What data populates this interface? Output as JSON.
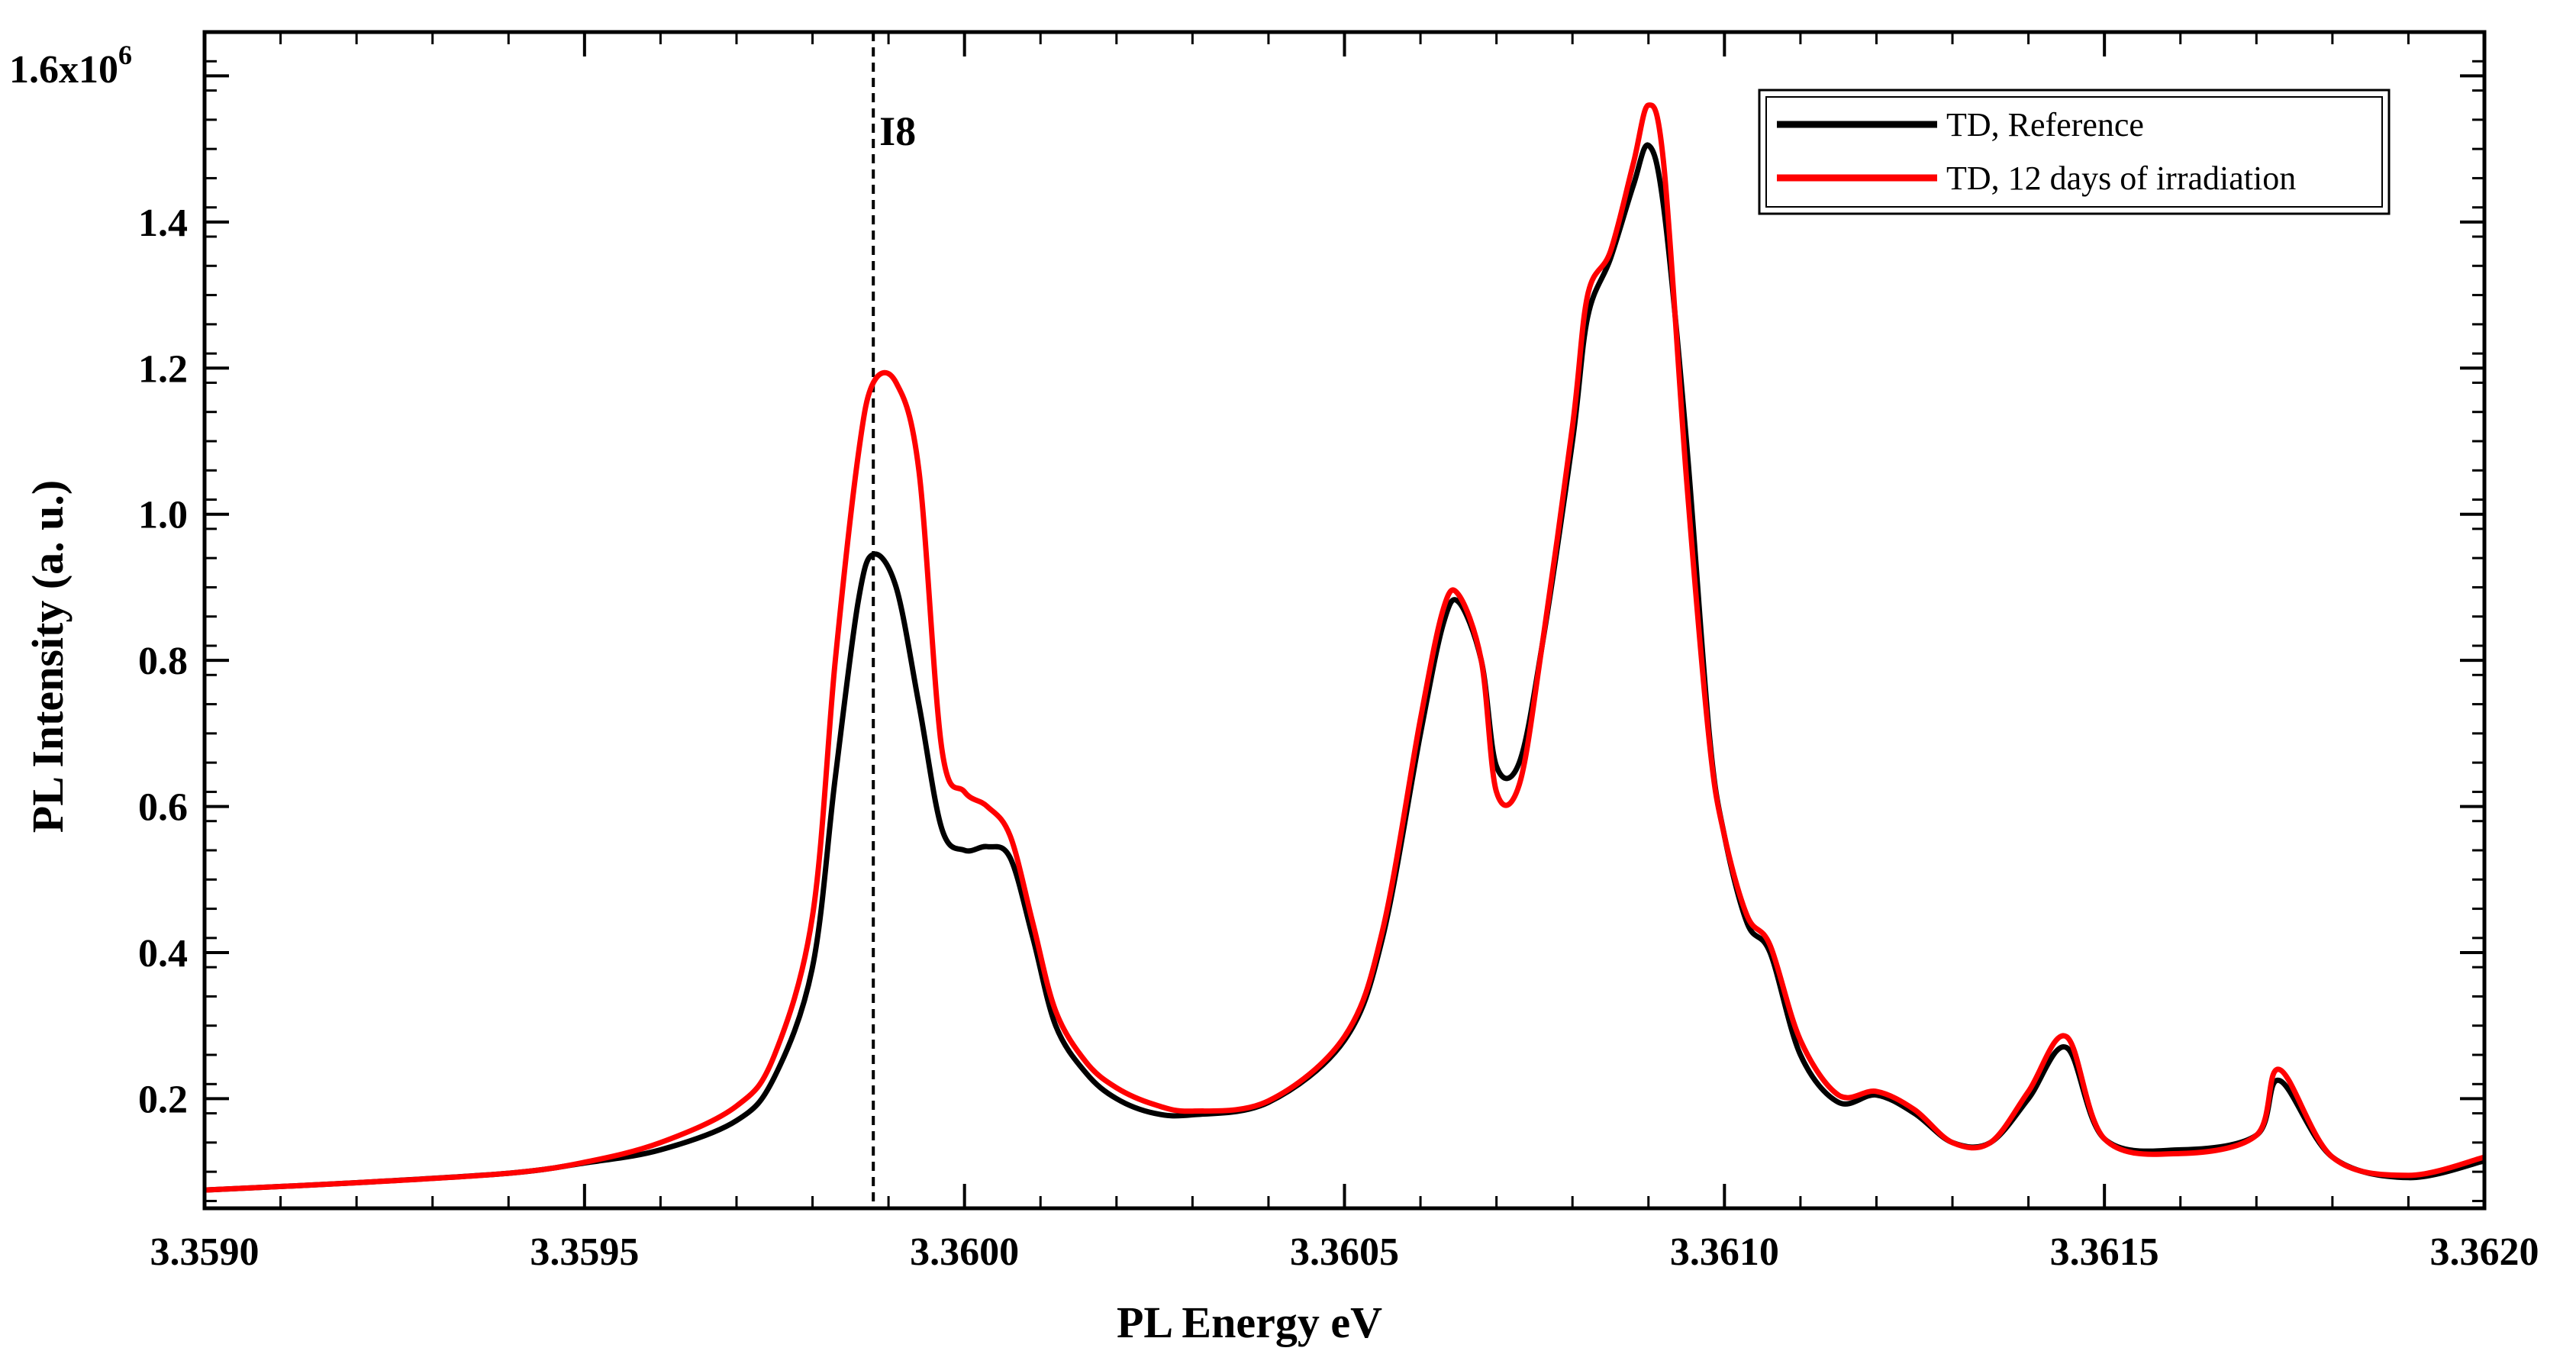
{
  "chart_data": {
    "type": "line",
    "title": "",
    "xlabel": "PL Energy eV",
    "ylabel": "PL Intensity (a. u.)",
    "xlim": [
      3.359,
      3.362
    ],
    "ylim": [
      0.05,
      1.66
    ],
    "y_multiplier_label": "1.6x10",
    "y_multiplier_exponent": "6",
    "x_ticks": [
      3.359,
      3.3595,
      3.36,
      3.3605,
      3.361,
      3.3615,
      3.362
    ],
    "x_tick_labels": [
      "3.3590",
      "3.3595",
      "3.3600",
      "3.3605",
      "3.3610",
      "3.3615",
      "3.3620"
    ],
    "y_ticks": [
      0.2,
      0.4,
      0.6,
      0.8,
      1.0,
      1.2,
      1.4
    ],
    "y_tick_labels": [
      "0.2",
      "0.4",
      "0.6",
      "0.8",
      "1.0",
      "1.2",
      "1.4"
    ],
    "legend_position": "top-right",
    "annotation": {
      "label": "I8",
      "x": 3.35988
    },
    "series": [
      {
        "name": "TD, Reference",
        "color": "#000000",
        "x": [
          3.359,
          3.3592,
          3.3594,
          3.3595,
          3.3596,
          3.3597,
          3.35975,
          3.3598,
          3.35983,
          3.35986,
          3.35988,
          3.35991,
          3.35994,
          3.35997,
          3.36,
          3.36003,
          3.36006,
          3.36009,
          3.36012,
          3.36016,
          3.3602,
          3.36025,
          3.3603,
          3.3604,
          3.3605,
          3.36055,
          3.3606,
          3.36063,
          3.36065,
          3.36068,
          3.3607,
          3.36073,
          3.36076,
          3.3608,
          3.36082,
          3.36085,
          3.36088,
          3.3609,
          3.36092,
          3.36095,
          3.36098,
          3.361,
          3.36103,
          3.36106,
          3.3611,
          3.36115,
          3.3612,
          3.36125,
          3.3613,
          3.36135,
          3.3614,
          3.36145,
          3.3615,
          3.3616,
          3.3617,
          3.36173,
          3.3618,
          3.3619,
          3.362
        ],
        "y": [
          0.075,
          0.085,
          0.098,
          0.112,
          0.13,
          0.17,
          0.23,
          0.38,
          0.64,
          0.88,
          0.945,
          0.9,
          0.74,
          0.57,
          0.54,
          0.545,
          0.53,
          0.42,
          0.3,
          0.235,
          0.2,
          0.18,
          0.178,
          0.195,
          0.28,
          0.42,
          0.7,
          0.85,
          0.88,
          0.8,
          0.655,
          0.66,
          0.82,
          1.1,
          1.27,
          1.35,
          1.45,
          1.505,
          1.42,
          1.1,
          0.7,
          0.56,
          0.44,
          0.4,
          0.26,
          0.195,
          0.205,
          0.18,
          0.14,
          0.14,
          0.2,
          0.27,
          0.145,
          0.13,
          0.15,
          0.225,
          0.12,
          0.092,
          0.115
        ]
      },
      {
        "name": "TD, 12 days of irradiation",
        "color": "#ff0000",
        "x": [
          3.359,
          3.3592,
          3.3594,
          3.3595,
          3.3596,
          3.3597,
          3.35975,
          3.3598,
          3.35983,
          3.35986,
          3.35988,
          3.35991,
          3.35994,
          3.35997,
          3.36,
          3.36003,
          3.36006,
          3.36009,
          3.36012,
          3.36016,
          3.3602,
          3.36025,
          3.3603,
          3.3604,
          3.3605,
          3.36055,
          3.3606,
          3.36063,
          3.36065,
          3.36068,
          3.3607,
          3.36073,
          3.36076,
          3.3608,
          3.36082,
          3.36085,
          3.36088,
          3.3609,
          3.36092,
          3.36095,
          3.36098,
          3.361,
          3.36103,
          3.36106,
          3.3611,
          3.36115,
          3.3612,
          3.36125,
          3.3613,
          3.36135,
          3.3614,
          3.36145,
          3.3615,
          3.3616,
          3.3617,
          3.36173,
          3.3618,
          3.3619,
          3.362
        ],
        "y": [
          0.075,
          0.085,
          0.098,
          0.113,
          0.14,
          0.19,
          0.26,
          0.45,
          0.8,
          1.08,
          1.18,
          1.18,
          1.06,
          0.68,
          0.62,
          0.6,
          0.56,
          0.44,
          0.32,
          0.25,
          0.215,
          0.192,
          0.183,
          0.197,
          0.285,
          0.43,
          0.72,
          0.87,
          0.89,
          0.8,
          0.62,
          0.63,
          0.82,
          1.12,
          1.3,
          1.36,
          1.48,
          1.56,
          1.48,
          1.05,
          0.69,
          0.56,
          0.45,
          0.41,
          0.28,
          0.205,
          0.21,
          0.185,
          0.14,
          0.14,
          0.21,
          0.285,
          0.145,
          0.125,
          0.15,
          0.24,
          0.12,
          0.095,
          0.12
        ]
      }
    ]
  }
}
